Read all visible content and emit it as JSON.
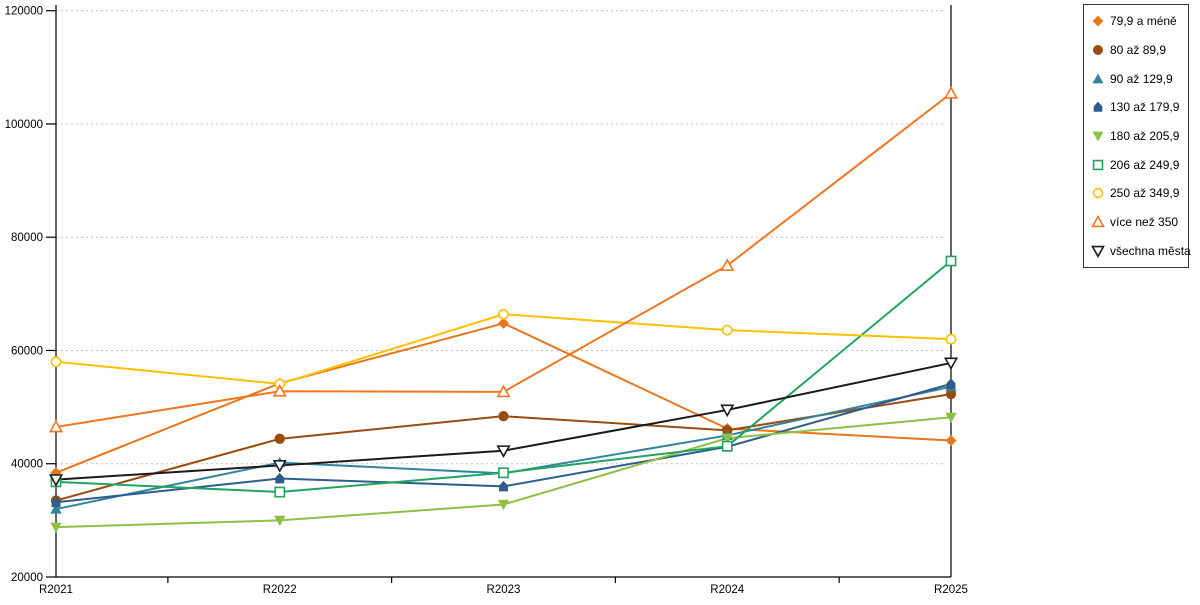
{
  "page": {
    "background": "#FFFFFF"
  },
  "chart_data": {
    "type": "line",
    "title": "",
    "xlabel": "",
    "ylabel": "",
    "categories": [
      "R2021",
      "R2022",
      "R2023",
      "R2024",
      "R2025"
    ],
    "y_axis": {
      "min": 20000,
      "max": 120000,
      "step": 20000,
      "tick_labels": [
        "20000",
        "40000",
        "60000",
        "80000",
        "100000",
        "120000"
      ]
    },
    "grid": "horizontal-dotted",
    "legend_position": "right",
    "colors": {
      "gridline": "#BFBFBF",
      "axis": "#000000",
      "text": "#000000"
    },
    "series": [
      {
        "name": "79,9 a méně",
        "color": "#E8761B",
        "marker": "diamond",
        "filled": true,
        "values": [
          38400,
          54200,
          64800,
          46200,
          44100
        ]
      },
      {
        "name": "80 až 89,9",
        "color": "#9A4B0F",
        "marker": "circle",
        "filled": true,
        "values": [
          33500,
          44400,
          48400,
          45900,
          52300
        ]
      },
      {
        "name": "90 až 129,9",
        "color": "#31849B",
        "marker": "triangle-up",
        "filled": true,
        "values": [
          32000,
          40200,
          38300,
          45000,
          53600
        ]
      },
      {
        "name": "130 až 179,9",
        "color": "#2E5C8C",
        "marker": "house",
        "filled": true,
        "values": [
          33200,
          37400,
          36000,
          43000,
          54100
        ]
      },
      {
        "name": "180 až 205,9",
        "color": "#8DC044",
        "marker": "triangle-down",
        "filled": true,
        "values": [
          28800,
          30000,
          32800,
          44500,
          48200
        ]
      },
      {
        "name": "206 až 249,9",
        "color": "#21A55E",
        "marker": "square",
        "filled": false,
        "values": [
          36800,
          35000,
          38400,
          43100,
          75800
        ]
      },
      {
        "name": "250 až 349,9",
        "color": "#FFC000",
        "marker": "circle",
        "filled": false,
        "values": [
          58000,
          54100,
          66400,
          63600,
          62000
        ]
      },
      {
        "name": "více než 350",
        "color": "#F2761F",
        "marker": "triangle-up",
        "filled": false,
        "values": [
          46500,
          52800,
          52700,
          75000,
          105400
        ]
      },
      {
        "name": "všechna města",
        "color": "#1A1A1A",
        "marker": "triangle-down",
        "filled": false,
        "values": [
          37200,
          39700,
          42300,
          49500,
          57800
        ]
      }
    ]
  }
}
